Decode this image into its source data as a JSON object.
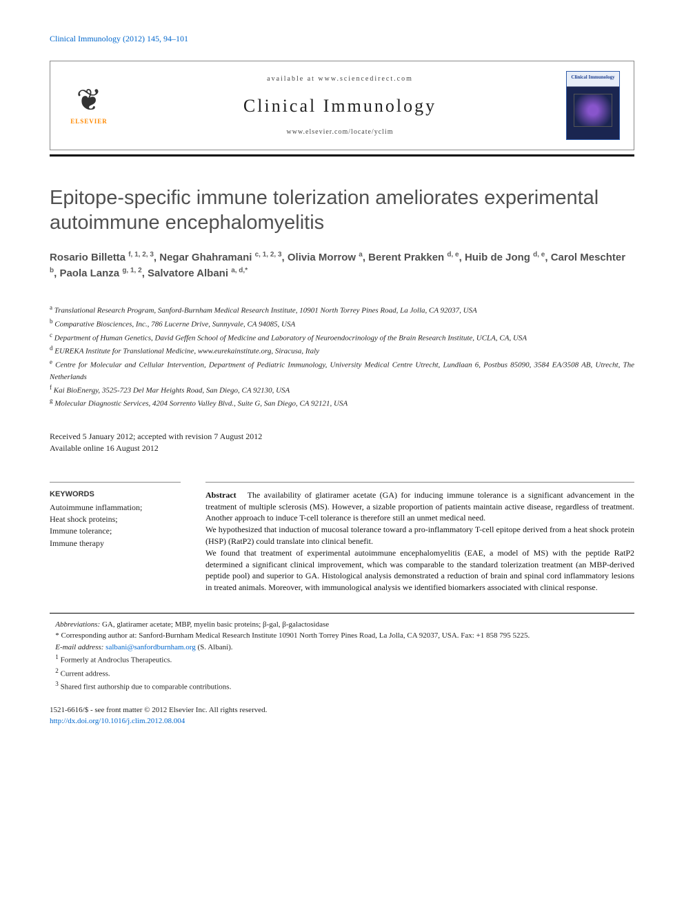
{
  "citation": "Clinical Immunology (2012) 145, 94–101",
  "header": {
    "available": "available at www.sciencedirect.com",
    "journal": "Clinical Immunology",
    "locate": "www.elsevier.com/locate/yclim",
    "publisher": "ELSEVIER",
    "cover_title": "Clinical Immunology"
  },
  "title": "Epitope-specific immune tolerization ameliorates experimental autoimmune encephalomyelitis",
  "authors": [
    {
      "name": "Rosario Billetta",
      "sup": "f, 1, 2, 3"
    },
    {
      "name": "Negar Ghahramani",
      "sup": "c, 1, 2, 3"
    },
    {
      "name": "Olivia Morrow",
      "sup": "a"
    },
    {
      "name": "Berent Prakken",
      "sup": "d, e"
    },
    {
      "name": "Huib de Jong",
      "sup": "d, e"
    },
    {
      "name": "Carol Meschter",
      "sup": "b"
    },
    {
      "name": "Paola Lanza",
      "sup": "g, 1, 2"
    },
    {
      "name": "Salvatore Albani",
      "sup": "a, d,*"
    }
  ],
  "affiliations": [
    {
      "key": "a",
      "text": "Translational Research Program, Sanford-Burnham Medical Research Institute, 10901 North Torrey Pines Road, La Jolla, CA 92037, USA"
    },
    {
      "key": "b",
      "text": "Comparative Biosciences, Inc., 786 Lucerne Drive, Sunnyvale, CA 94085, USA"
    },
    {
      "key": "c",
      "text": "Department of Human Genetics, David Geffen School of Medicine and Laboratory of Neuroendocrinology of the Brain Research Institute, UCLA, CA, USA"
    },
    {
      "key": "d",
      "text": "EUREKA Institute for Translational Medicine, www.eurekainstitute.org, Siracusa, Italy"
    },
    {
      "key": "e",
      "text": "Centre for Molecular and Cellular Intervention, Department of Pediatric Immunology, University Medical Centre Utrecht, Lundlaan 6, Postbus 85090, 3584 EA/3508 AB, Utrecht, The Netherlands"
    },
    {
      "key": "f",
      "text": "Kai BioEnergy, 3525-723 Del Mar Heights Road, San Diego, CA 92130, USA"
    },
    {
      "key": "g",
      "text": "Molecular Diagnostic Services, 4204 Sorrento Valley Blvd., Suite G, San Diego, CA 92121, USA"
    }
  ],
  "dates": {
    "received": "Received 5 January 2012; accepted with revision 7 August 2012",
    "online": "Available online 16 August 2012"
  },
  "keywords": {
    "heading": "KEYWORDS",
    "items": "Autoimmune inflammation;\nHeat shock proteins;\nImmune tolerance;\nImmune therapy"
  },
  "abstract": {
    "label": "Abstract",
    "p1": "The availability of glatiramer acetate (GA) for inducing immune tolerance is a significant advancement in the treatment of multiple sclerosis (MS). However, a sizable proportion of patients maintain active disease, regardless of treatment. Another approach to induce T-cell tolerance is therefore still an unmet medical need.",
    "p2": "We hypothesized that induction of mucosal tolerance toward a pro-inflammatory T-cell epitope derived from a heat shock protein (HSP) (RatP2) could translate into clinical benefit.",
    "p3": "We found that treatment of experimental autoimmune encephalomyelitis (EAE, a model of MS) with the peptide RatP2 determined a significant clinical improvement, which was comparable to the standard tolerization treatment (an MBP-derived peptide pool) and superior to GA. Histological analysis demonstrated a reduction of brain and spinal cord inflammatory lesions in treated animals. Moreover, with immunological analysis we identified biomarkers associated with clinical response."
  },
  "footnotes": {
    "abbrev_label": "Abbreviations:",
    "abbrev": "GA, glatiramer acetate; MBP, myelin basic proteins; β-gal, β-galactosidase",
    "corr": "* Corresponding author at: Sanford-Burnham Medical Research Institute 10901 North Torrey Pines Road, La Jolla, CA 92037, USA. Fax: +1 858 795 5225.",
    "email_label": "E-mail address:",
    "email": "salbani@sanfordburnham.org",
    "email_suffix": "(S. Albani).",
    "n1": "Formerly at Androclus Therapeutics.",
    "n2": "Current address.",
    "n3": "Shared first authorship due to comparable contributions."
  },
  "copyright": {
    "line1": "1521-6616/$ - see front matter © 2012 Elsevier Inc. All rights reserved.",
    "doi": "http://dx.doi.org/10.1016/j.clim.2012.08.004"
  },
  "colors": {
    "link": "#0066cc",
    "title_gray": "#505050",
    "elsevier_orange": "#ff8800",
    "rule": "#000000"
  }
}
